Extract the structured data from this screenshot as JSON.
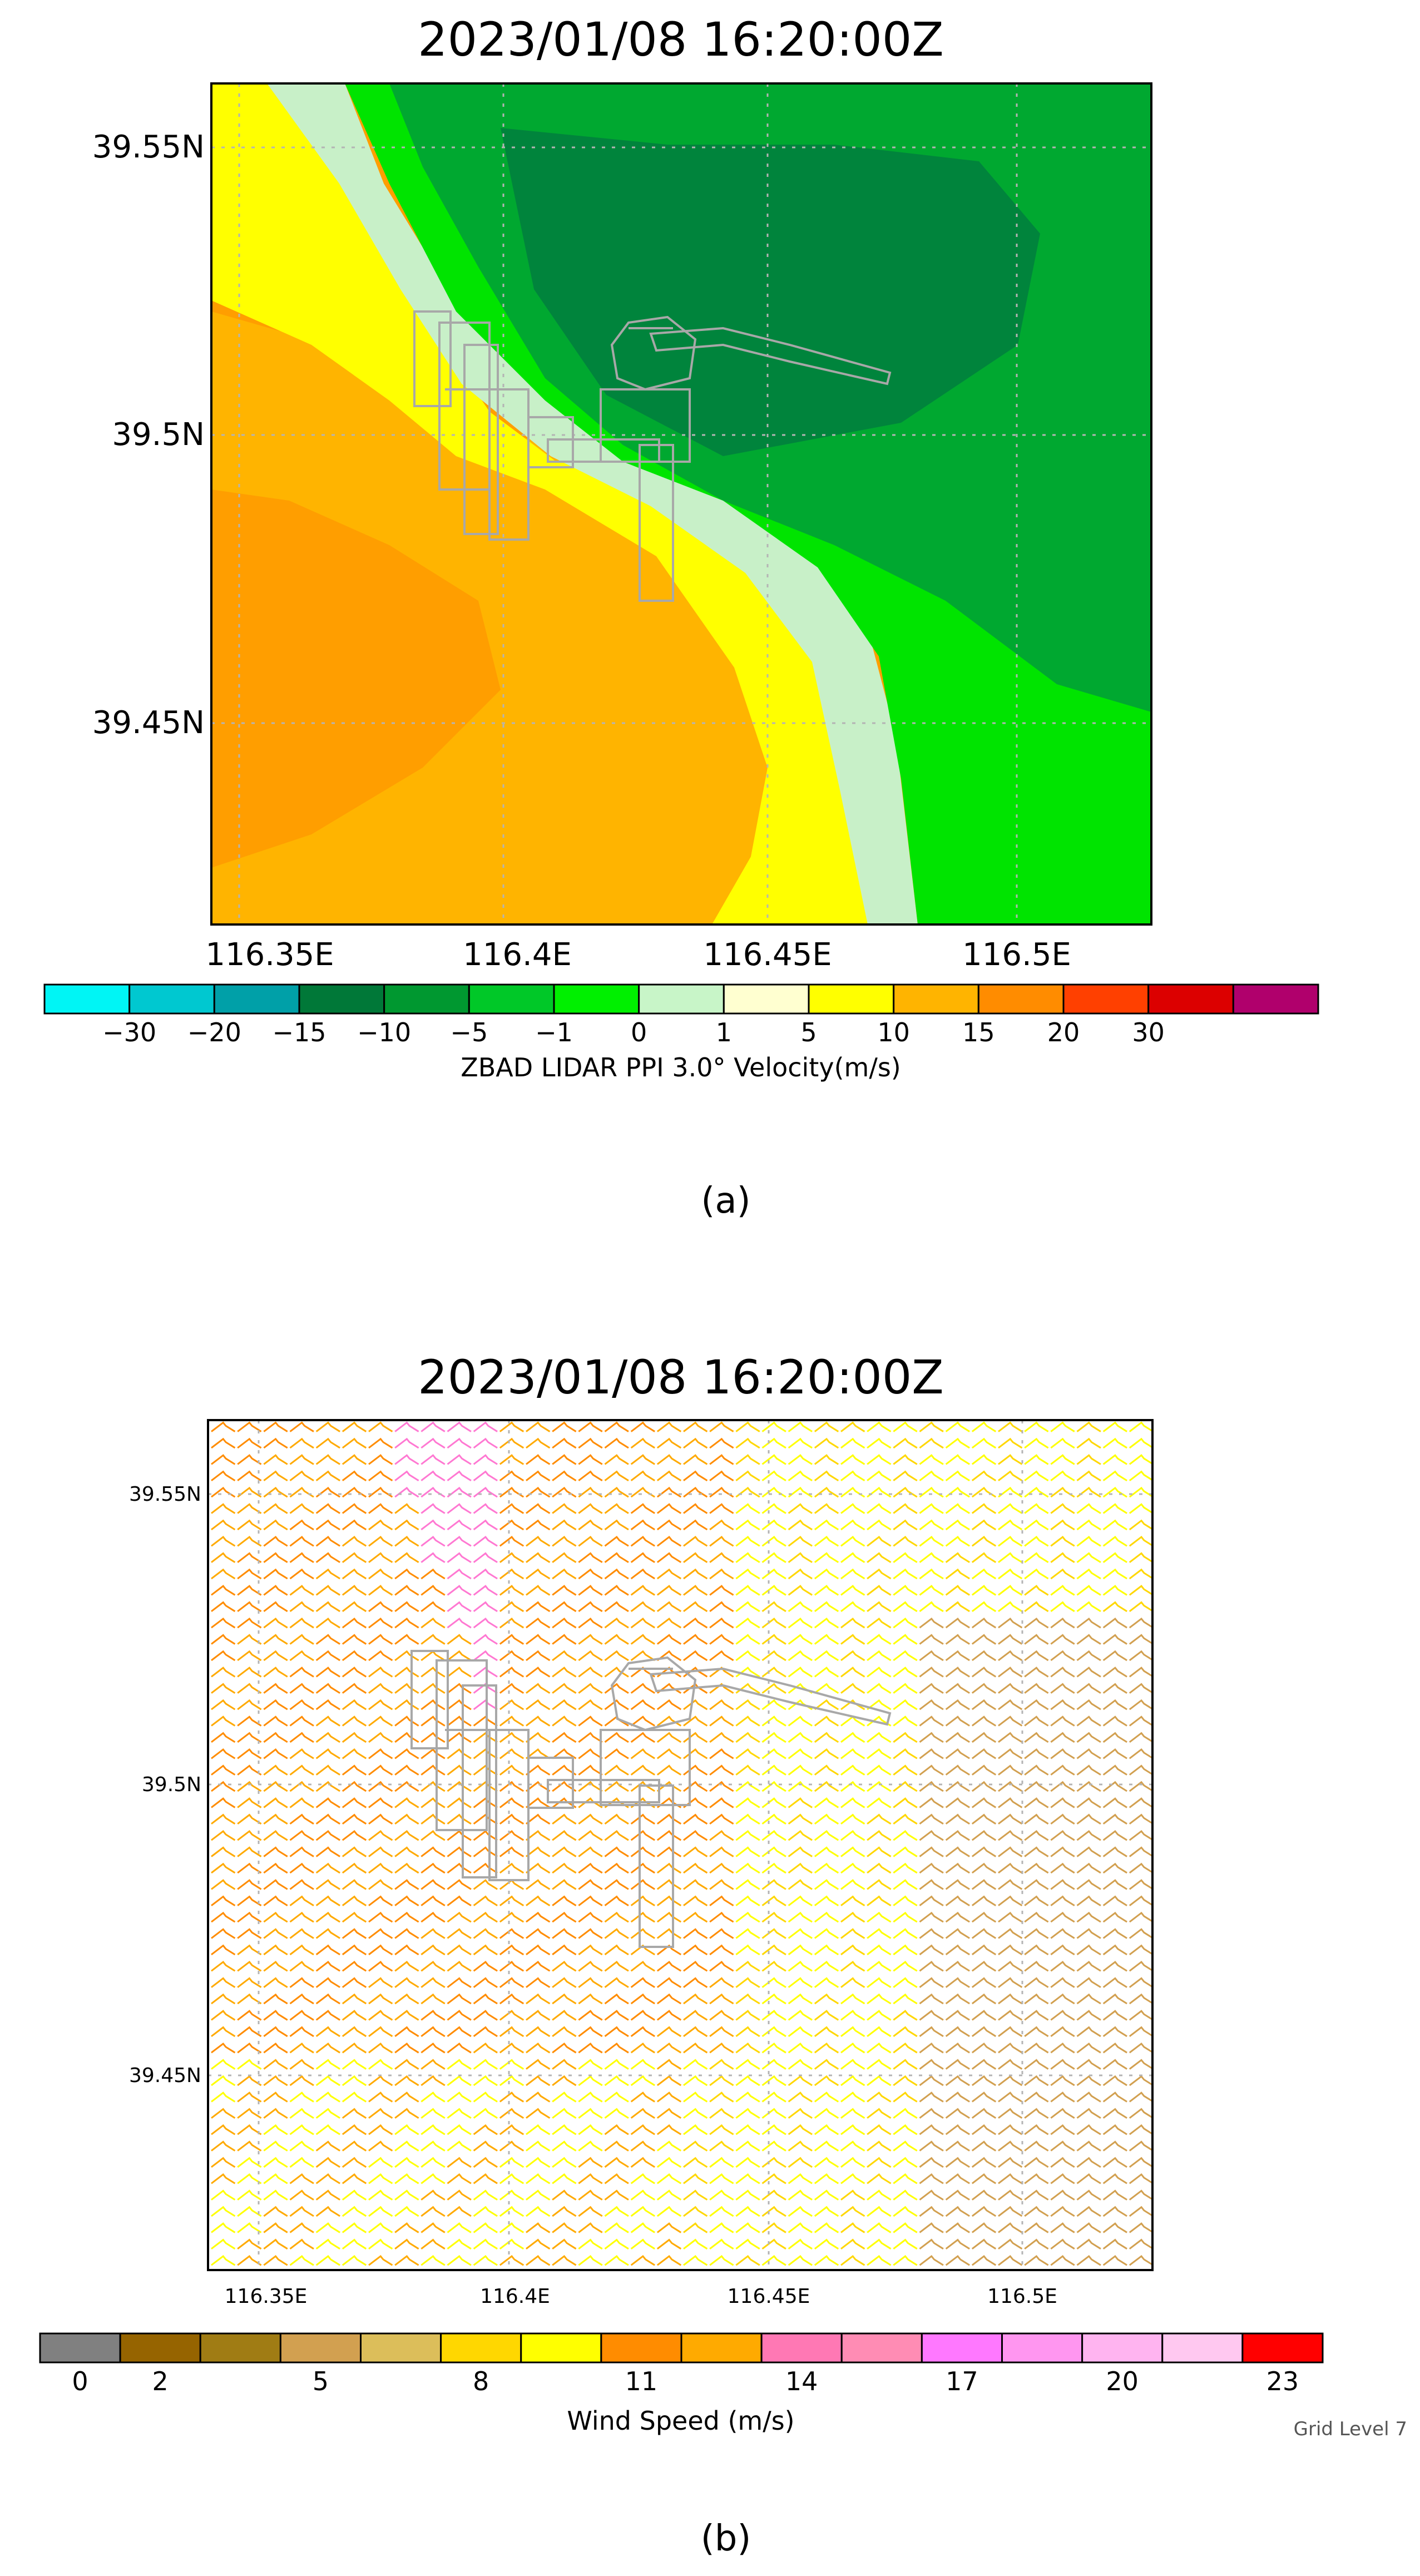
{
  "panel_a": {
    "title": "2023/01/08 16:20:00Z",
    "y_ticks": [
      "39.55N",
      "39.5N",
      "39.45N"
    ],
    "x_ticks": [
      "116.35E",
      "116.4E",
      "116.45E",
      "116.5E"
    ],
    "colorbar": {
      "colors": [
        "#00f5f5",
        "#00c8d0",
        "#00a0a8",
        "#007838",
        "#009830",
        "#00c828",
        "#00f000",
        "#c8f5c8",
        "#ffffd0",
        "#ffff00",
        "#ffb400",
        "#ff8c00",
        "#ff4000",
        "#dc0000",
        "#b0006c"
      ],
      "labels": [
        "−30",
        "−20",
        "−15",
        "−10",
        "−5",
        "−1",
        "0",
        "1",
        "5",
        "10",
        "15",
        "20",
        "30"
      ],
      "caption": "ZBAD  LIDAR PPI 3.0° Velocity(m/s)"
    },
    "region_colors": {
      "dark_green": "#00843c",
      "green": "#00a830",
      "bright_green": "#00e400",
      "pale_green": "#c8f0c8",
      "yellow": "#ffff00",
      "orange": "#ffb400",
      "dark_orange": "#ff9600"
    },
    "label": "(a)"
  },
  "panel_b": {
    "title": "2023/01/08 16:20:00Z",
    "y_ticks": [
      "39.55N",
      "39.5N",
      "39.45N"
    ],
    "x_ticks": [
      "116.35E",
      "116.4E",
      "116.45E",
      "116.5E"
    ],
    "colorbar": {
      "colors": [
        "#808080",
        "#966400",
        "#a07c14",
        "#d2a050",
        "#dcbe5a",
        "#ffd700",
        "#ffff00",
        "#ff8c00",
        "#ffaa00",
        "#ff78b4",
        "#ff8cb4",
        "#ff78ff",
        "#ff96f0",
        "#ffb4f0",
        "#ffc8f0",
        "#ff0000"
      ],
      "labels": [
        "0",
        "2",
        "5",
        "8",
        "11",
        "14",
        "17",
        "20",
        "23"
      ],
      "caption": "Wind Speed (m/s)"
    },
    "grid_level": "Grid Level 7",
    "label": "(b)"
  },
  "colors": {
    "airport_outline": "#a8a8a8",
    "grid": "#b4b4b4",
    "frame": "#000000"
  }
}
